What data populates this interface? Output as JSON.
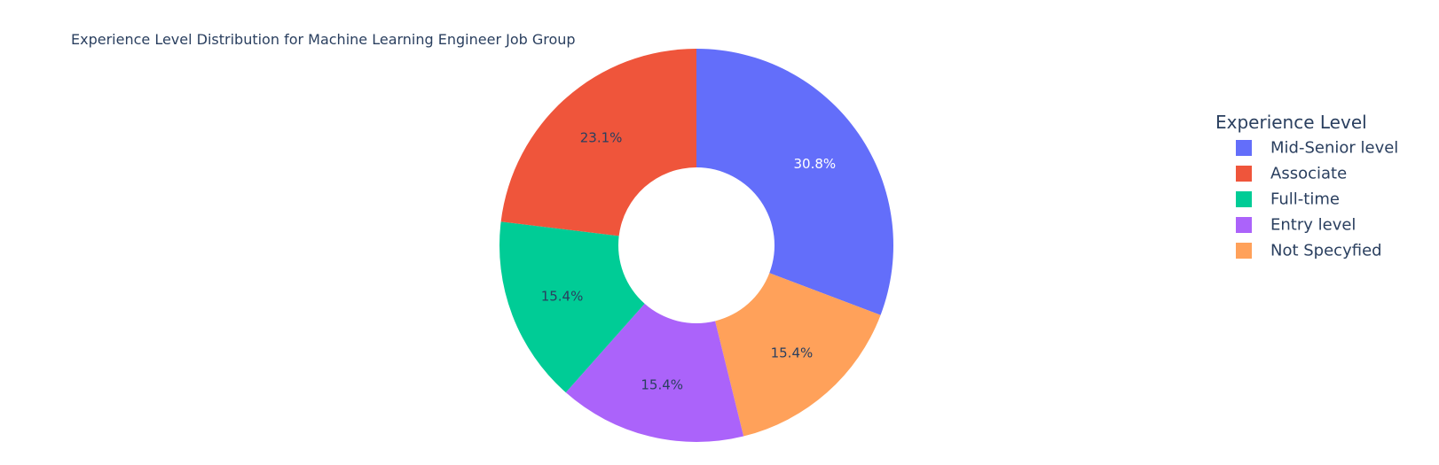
{
  "chart_data": {
    "type": "pie",
    "hole": true,
    "title": "Experience Level Distribution for Machine Learning Engineer Job Group",
    "legend": {
      "title": "Experience Level",
      "placement": "right"
    },
    "slices": [
      {
        "label": "Mid-Senior level",
        "value": 30.8,
        "text": "30.8%",
        "color": "#636efa",
        "text_color": "#ffffff"
      },
      {
        "label": "Not Specyfied",
        "value": 15.4,
        "text": "15.4%",
        "color": "#ffa15a",
        "text_color": "#2a3f5f"
      },
      {
        "label": "Entry level",
        "value": 15.4,
        "text": "15.4%",
        "color": "#ab63fa",
        "text_color": "#2a3f5f"
      },
      {
        "label": "Full-time",
        "value": 15.4,
        "text": "15.4%",
        "color": "#00cc96",
        "text_color": "#2a3f5f"
      },
      {
        "label": "Associate",
        "value": 23.1,
        "text": "23.1%",
        "color": "#ef553b",
        "text_color": "#2a3f5f"
      }
    ],
    "legend_order": [
      "Mid-Senior level",
      "Associate",
      "Full-time",
      "Entry level",
      "Not Specyfied"
    ]
  }
}
